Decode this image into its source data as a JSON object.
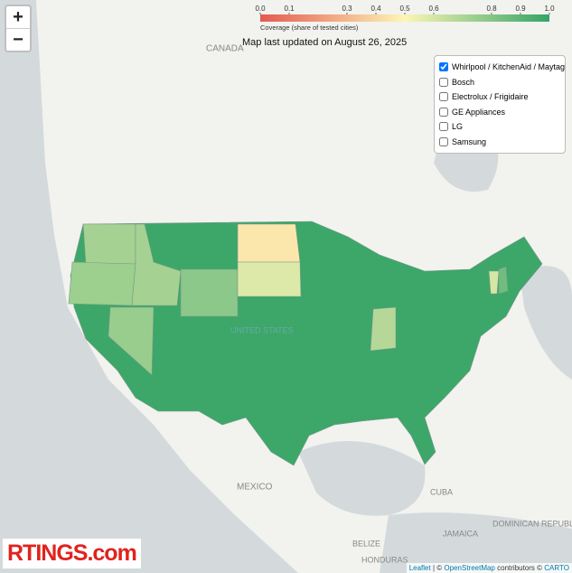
{
  "zoom": {
    "in": "+",
    "out": "−"
  },
  "legend": {
    "ticks": [
      {
        "value": 0,
        "label": "0.0"
      },
      0.1,
      0.3,
      0.4,
      0.5,
      0.6,
      0.8,
      0.9,
      {
        "value": 1,
        "label": "1.0"
      }
    ],
    "range": [
      0,
      1
    ],
    "colorscale": [
      "#e45a50",
      "#fdf6b5",
      "#34a466"
    ],
    "caption": "Coverage (share of tested cities)"
  },
  "updated": "Map last updated on August 26, 2025",
  "layers": [
    {
      "label": "Whirlpool / KitchenAid / Maytag",
      "checked": true
    },
    {
      "label": "Bosch",
      "checked": false
    },
    {
      "label": "Electrolux / Frigidaire",
      "checked": false
    },
    {
      "label": "GE Appliances",
      "checked": false
    },
    {
      "label": "LG",
      "checked": false
    },
    {
      "label": "Samsung",
      "checked": false
    }
  ],
  "map": {
    "place_labels": [
      "CANADA",
      "UNITED STATES",
      "MEXICO",
      "CUBA",
      "HONDURAS",
      "BELIZE",
      "JAMAICA",
      "DOMINICAN REPUBLIC"
    ],
    "regions": [
      {
        "coverage": 0.98
      },
      {
        "coverage": 0.72
      },
      {
        "coverage": 0.74
      },
      {
        "coverage": 0.72
      },
      {
        "coverage": 0.75
      },
      {
        "coverage": 0.78
      },
      {
        "coverage": 0.45
      },
      {
        "coverage": 0.58
      },
      {
        "coverage": 0.68
      },
      {
        "coverage": 0.6
      },
      {
        "coverage": 0.85
      }
    ]
  },
  "logo": {
    "brand": "RTINGS",
    "suffix": ".com"
  },
  "attribution": {
    "leaflet": "Leaflet",
    "sep": "| ©",
    "osm": "OpenStreetMap",
    "contrib": "contributors ©",
    "carto": "CARTO"
  }
}
